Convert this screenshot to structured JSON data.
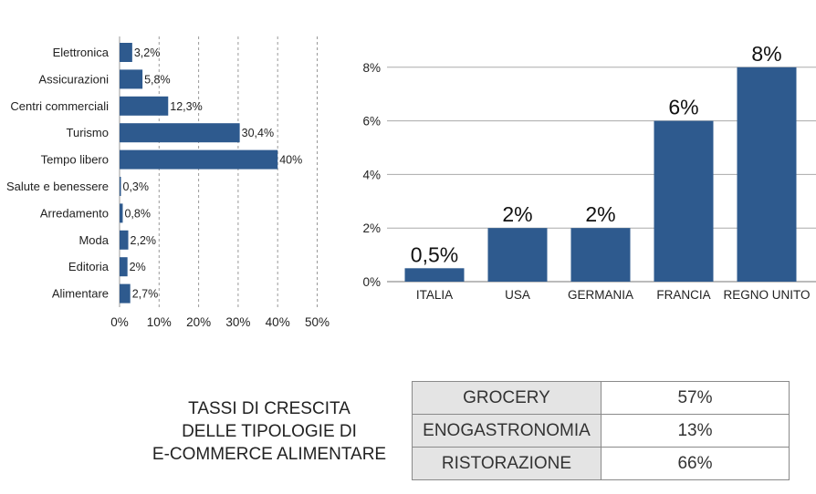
{
  "chart_data": [
    {
      "type": "bar",
      "orientation": "horizontal",
      "categories": [
        "Elettronica",
        "Assicurazioni",
        "Centri commerciali",
        "Turismo",
        "Tempo libero",
        "Salute e benessere",
        "Arredamento",
        "Moda",
        "Editoria",
        "Alimentare"
      ],
      "values": [
        3.2,
        5.8,
        12.3,
        30.4,
        40,
        0.3,
        0.8,
        2.2,
        2,
        2.7
      ],
      "value_labels": [
        "3,2%",
        "5,8%",
        "12,3%",
        "30,4%",
        "40%",
        "0,3%",
        "0,8%",
        "2,2%",
        "2%",
        "2,7%"
      ],
      "xlim": [
        0,
        50
      ],
      "xticks": [
        0,
        10,
        20,
        30,
        40,
        50
      ],
      "xtick_labels": [
        "0%",
        "10%",
        "20%",
        "30%",
        "40%",
        "50%"
      ],
      "grid": "vertical dotted",
      "color": "#2e5a8e"
    },
    {
      "type": "bar",
      "orientation": "vertical",
      "categories": [
        "ITALIA",
        "USA",
        "GERMANIA",
        "FRANCIA",
        "REGNO UNITO"
      ],
      "values": [
        0.5,
        2,
        2,
        6,
        8
      ],
      "value_labels": [
        "0,5%",
        "2%",
        "2%",
        "6%",
        "8%"
      ],
      "ylim": [
        0,
        8
      ],
      "yticks": [
        0,
        2,
        4,
        6,
        8
      ],
      "ytick_labels": [
        "0%",
        "2%",
        "4%",
        "6%",
        "8%"
      ],
      "grid": "horizontal solid",
      "color": "#2e5a8e"
    },
    {
      "type": "table",
      "rows": [
        {
          "category": "GROCERY",
          "value": "57%"
        },
        {
          "category": "ENOGASTRONOMIA",
          "value": "13%"
        },
        {
          "category": "RISTORAZIONE",
          "value": "66%"
        }
      ]
    }
  ],
  "caption": {
    "lines": [
      "TASSI DI CRESCITA",
      "DELLE TIPOLOGIE DI",
      "E-COMMERCE ALIMENTARE"
    ]
  }
}
